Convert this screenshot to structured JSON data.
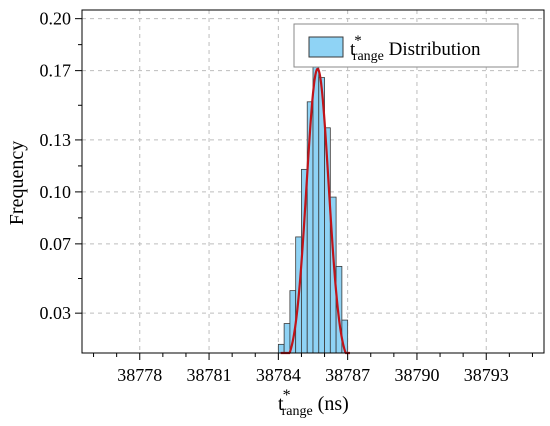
{
  "chart_data": {
    "type": "bar",
    "title": "",
    "xlabel": {
      "base": "t",
      "sup": "*",
      "sub": "range",
      "suffix": " (ns)"
    },
    "ylabel": "Frequency",
    "legend": {
      "base": "t",
      "sup": "*",
      "sub": "range",
      "suffix": " Distribution",
      "placement": "top-right"
    },
    "xlim": [
      38775.5,
      38795.5
    ],
    "ylim": [
      0.007,
      0.205
    ],
    "x_ticks": [
      38778,
      38781,
      38784,
      38787,
      38790,
      38793
    ],
    "x_tick_labels": [
      "38778",
      "38781",
      "38784",
      "38787",
      "38790",
      "38793"
    ],
    "y_ticks": [
      0.03,
      0.07,
      0.1,
      0.13,
      0.17,
      0.2
    ],
    "y_tick_labels": [
      "0.03",
      "0.07",
      "0.10",
      "0.13",
      "0.17",
      "0.20"
    ],
    "grid": true,
    "bin_width": 0.25,
    "bins": [
      {
        "x0": 38784.0,
        "value": 0.012
      },
      {
        "x0": 38784.25,
        "value": 0.024
      },
      {
        "x0": 38784.5,
        "value": 0.043
      },
      {
        "x0": 38784.75,
        "value": 0.074
      },
      {
        "x0": 38785.0,
        "value": 0.113
      },
      {
        "x0": 38785.25,
        "value": 0.152
      },
      {
        "x0": 38785.5,
        "value": 0.172
      },
      {
        "x0": 38785.75,
        "value": 0.166
      },
      {
        "x0": 38786.0,
        "value": 0.137
      },
      {
        "x0": 38786.25,
        "value": 0.097
      },
      {
        "x0": 38786.5,
        "value": 0.057
      },
      {
        "x0": 38786.75,
        "value": 0.026
      }
    ],
    "fit": {
      "type": "gaussian",
      "mean": 38785.7,
      "sigma": 0.48,
      "amplitude": 0.171,
      "x_range": [
        38784.1,
        38787.1
      ]
    },
    "colors": {
      "bar_fill": "#8fd3f5",
      "bar_stroke": "#3a3a3a",
      "fit_line": "#c0141a",
      "grid": "#bdbdbd"
    }
  }
}
